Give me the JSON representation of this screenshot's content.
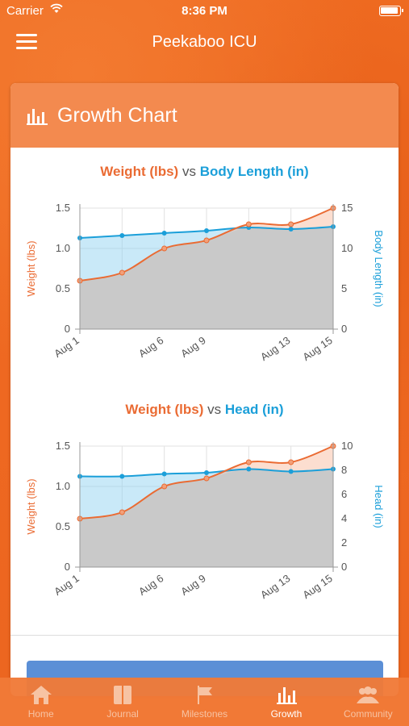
{
  "status": {
    "carrier": "Carrier",
    "time": "8:36 PM"
  },
  "nav": {
    "title": "Peekaboo ICU"
  },
  "card": {
    "title": "Growth Chart"
  },
  "charts_text": [
    {
      "left": "Weight (lbs)",
      "vs": "vs",
      "right": "Body Length (in)"
    },
    {
      "left": "Weight (lbs)",
      "vs": "vs",
      "right": "Head (in)"
    }
  ],
  "tabs": [
    "Home",
    "Journal",
    "Milestones",
    "Growth",
    "Community"
  ],
  "colors": {
    "weight": "#ea6b33",
    "secondary": "#1b9fd9",
    "accent": "#ef6a22"
  },
  "chart_data": [
    {
      "type": "line",
      "title": "Weight (lbs) vs Body Length (in)",
      "categories": [
        "Aug 1",
        "",
        "Aug 6",
        "Aug 9",
        "",
        "Aug 13",
        "Aug 15"
      ],
      "series": [
        {
          "name": "Weight (lbs)",
          "axis": "left",
          "values": [
            0.6,
            0.7,
            1.0,
            1.1,
            1.3,
            1.3,
            1.5
          ]
        },
        {
          "name": "Body Length (in)",
          "axis": "right",
          "values": [
            11.3,
            11.6,
            11.9,
            12.2,
            12.6,
            12.4,
            12.7
          ]
        }
      ],
      "ylabel": "Weight (lbs)",
      "y2label": "Body Length (in)",
      "ylim": [
        0,
        1.5
      ],
      "y2lim": [
        0,
        15
      ],
      "yticks": [
        "0",
        "0.5",
        "1.0",
        "1.5"
      ],
      "y2ticks": [
        "0",
        "5",
        "10",
        "15"
      ]
    },
    {
      "type": "line",
      "title": "Weight (lbs) vs Head (in)",
      "categories": [
        "Aug 1",
        "",
        "Aug 6",
        "Aug 9",
        "",
        "Aug 13",
        "Aug 15"
      ],
      "series": [
        {
          "name": "Weight (lbs)",
          "axis": "left",
          "values": [
            0.6,
            0.68,
            1.0,
            1.1,
            1.3,
            1.3,
            1.5
          ]
        },
        {
          "name": "Head (in)",
          "axis": "right",
          "values": [
            7.5,
            7.5,
            7.7,
            7.8,
            8.1,
            7.9,
            8.1
          ]
        }
      ],
      "ylabel": "Weight (lbs)",
      "y2label": "Head (in)",
      "ylim": [
        0,
        1.5
      ],
      "y2lim": [
        0,
        10
      ],
      "yticks": [
        "0",
        "0.5",
        "1.0",
        "1.5"
      ],
      "y2ticks": [
        "0",
        "2",
        "4",
        "6",
        "8",
        "10"
      ]
    }
  ]
}
